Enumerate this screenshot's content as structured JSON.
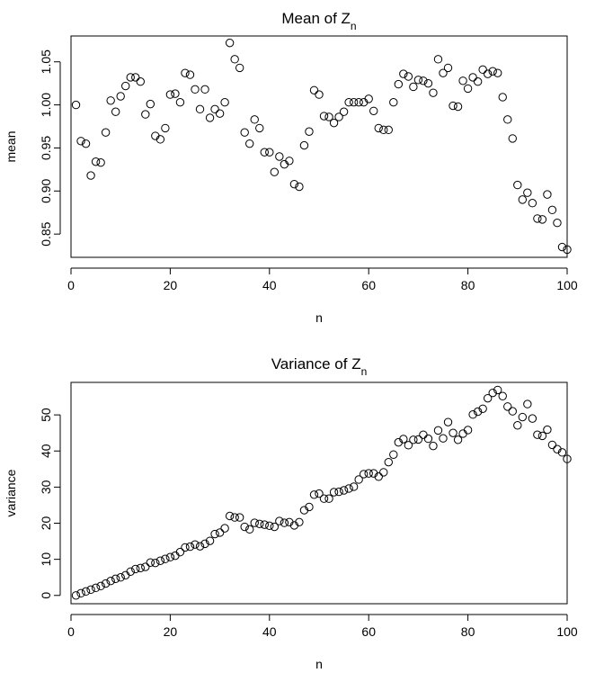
{
  "chart_data": [
    {
      "type": "scatter",
      "title": "Mean of Z",
      "title_subscript": "n",
      "xlabel": "n",
      "ylabel": "mean",
      "xlim": [
        0,
        100
      ],
      "ylim": [
        0.823,
        1.08
      ],
      "xticks": [
        0,
        20,
        40,
        60,
        80,
        100
      ],
      "yticks": [
        0.85,
        0.9,
        0.95,
        1.0,
        1.05
      ],
      "ytick_labels": [
        "0.85",
        "0.90",
        "0.95",
        "1.00",
        "1.05"
      ],
      "grid": false,
      "marker": "open-circle",
      "x": [
        1,
        2,
        3,
        4,
        5,
        6,
        7,
        8,
        9,
        10,
        11,
        12,
        13,
        14,
        15,
        16,
        17,
        18,
        19,
        20,
        21,
        22,
        23,
        24,
        25,
        26,
        27,
        28,
        29,
        30,
        31,
        32,
        33,
        34,
        35,
        36,
        37,
        38,
        39,
        40,
        41,
        42,
        43,
        44,
        45,
        46,
        47,
        48,
        49,
        50,
        51,
        52,
        53,
        54,
        55,
        56,
        57,
        58,
        59,
        60,
        61,
        62,
        63,
        64,
        65,
        66,
        67,
        68,
        69,
        70,
        71,
        72,
        73,
        74,
        75,
        76,
        77,
        78,
        79,
        80,
        81,
        82,
        83,
        84,
        85,
        86,
        87,
        88,
        89,
        90,
        91,
        92,
        93,
        94,
        95,
        96,
        97,
        98,
        99,
        100
      ],
      "y": [
        1.0,
        0.958,
        0.955,
        0.918,
        0.934,
        0.933,
        0.968,
        1.005,
        0.992,
        1.01,
        1.022,
        1.032,
        1.032,
        1.027,
        0.989,
        1.001,
        0.964,
        0.96,
        0.973,
        1.012,
        1.013,
        1.003,
        1.037,
        1.035,
        1.018,
        0.995,
        1.018,
        0.985,
        0.995,
        0.99,
        1.003,
        1.072,
        1.053,
        1.043,
        0.968,
        0.955,
        0.983,
        0.973,
        0.945,
        0.945,
        0.922,
        0.94,
        0.931,
        0.935,
        0.908,
        0.905,
        0.953,
        0.969,
        1.017,
        1.012,
        0.987,
        0.986,
        0.979,
        0.986,
        0.992,
        1.003,
        1.003,
        1.003,
        1.003,
        1.007,
        0.993,
        0.973,
        0.971,
        0.971,
        1.003,
        1.024,
        1.036,
        1.033,
        1.021,
        1.029,
        1.028,
        1.025,
        1.014,
        1.053,
        1.037,
        1.043,
        0.999,
        0.998,
        1.028,
        1.019,
        1.032,
        1.027,
        1.041,
        1.036,
        1.039,
        1.037,
        1.009,
        0.983,
        0.961,
        0.907,
        0.89,
        0.898,
        0.886,
        0.868,
        0.867,
        0.896,
        0.878,
        0.863,
        0.835,
        0.832
      ]
    },
    {
      "type": "scatter",
      "title": "Variance of Z",
      "title_subscript": "n",
      "xlabel": "n",
      "ylabel": "variance",
      "xlim": [
        0,
        100
      ],
      "ylim": [
        -2.3,
        59.0
      ],
      "xticks": [
        0,
        20,
        40,
        60,
        80,
        100
      ],
      "yticks": [
        0,
        10,
        20,
        30,
        40,
        50
      ],
      "ytick_labels": [
        "0",
        "10",
        "20",
        "30",
        "40",
        "50"
      ],
      "grid": false,
      "marker": "open-circle",
      "x": [
        1,
        2,
        3,
        4,
        5,
        6,
        7,
        8,
        9,
        10,
        11,
        12,
        13,
        14,
        15,
        16,
        17,
        18,
        19,
        20,
        21,
        22,
        23,
        24,
        25,
        26,
        27,
        28,
        29,
        30,
        31,
        32,
        33,
        34,
        35,
        36,
        37,
        38,
        39,
        40,
        41,
        42,
        43,
        44,
        45,
        46,
        47,
        48,
        49,
        50,
        51,
        52,
        53,
        54,
        55,
        56,
        57,
        58,
        59,
        60,
        61,
        62,
        63,
        64,
        65,
        66,
        67,
        68,
        69,
        70,
        71,
        72,
        73,
        74,
        75,
        76,
        77,
        78,
        79,
        80,
        81,
        82,
        83,
        84,
        85,
        86,
        87,
        88,
        89,
        90,
        91,
        92,
        93,
        94,
        95,
        96,
        97,
        98,
        99,
        100
      ],
      "y": [
        0.0,
        0.6,
        1.1,
        1.6,
        2.1,
        2.6,
        3.3,
        4.0,
        4.6,
        5.0,
        5.6,
        6.6,
        7.3,
        7.6,
        7.9,
        9.1,
        9.0,
        9.6,
        10.1,
        10.6,
        11.0,
        12.0,
        13.3,
        13.5,
        14.1,
        13.6,
        14.3,
        15.1,
        17.0,
        17.4,
        18.6,
        22.0,
        21.6,
        21.6,
        19.0,
        18.3,
        20.1,
        19.8,
        19.6,
        19.3,
        19.0,
        20.6,
        20.1,
        20.3,
        19.4,
        20.3,
        23.6,
        24.5,
        27.9,
        28.2,
        26.8,
        26.8,
        28.6,
        28.7,
        29.1,
        29.6,
        30.1,
        32.1,
        33.6,
        33.8,
        33.8,
        32.9,
        34.1,
        36.9,
        39.0,
        42.4,
        43.3,
        41.6,
        43.1,
        43.2,
        44.5,
        43.4,
        41.4,
        45.7,
        43.5,
        48.0,
        45.0,
        43.1,
        44.8,
        45.8,
        50.1,
        50.9,
        51.7,
        54.6,
        56.1,
        56.9,
        55.2,
        52.3,
        51.0,
        47.1,
        49.4,
        53.0,
        49.0,
        44.5,
        44.2,
        45.9,
        41.7,
        40.5,
        39.6,
        37.8
      ]
    }
  ]
}
